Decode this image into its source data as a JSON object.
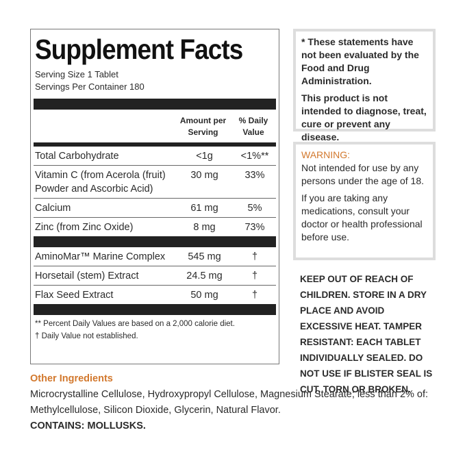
{
  "facts": {
    "title": "Supplement Facts",
    "serving_size": "Serving Size 1 Tablet",
    "servings_per_container": "Servings Per Container 180",
    "headers": [
      "Amount per Serving",
      "% Daily Value"
    ],
    "rows": [
      [
        "Total Carbohydrate",
        "<1g",
        "<1%**"
      ],
      [
        "Vitamin C (from Acerola (fruit) Powder and Ascorbic Acid)",
        "30 mg",
        "33%"
      ],
      [
        "Calcium",
        "61 mg",
        "5%"
      ],
      [
        "Zinc (from Zinc Oxide)",
        "8 mg",
        "73%"
      ]
    ],
    "blend_rows": [
      [
        "AminoMar™ Marine Complex",
        "545 mg",
        "†"
      ],
      [
        "Horsetail (stem) Extract",
        "24.5 mg",
        "†"
      ],
      [
        "Flax Seed Extract",
        "50 mg",
        "†"
      ]
    ],
    "footnotes": [
      "** Percent Daily Values are based on a 2,000 calorie diet.",
      "† Daily Value not established."
    ]
  },
  "disclaimer": [
    "* These statements have not been evaluated by the Food and Drug Administration.",
    "This product is not intended to diagnose, treat, cure or prevent any disease."
  ],
  "warning": {
    "title": "WARNING:",
    "paragraphs": [
      "Not intended for use by any persons under the age of 18.",
      "If you are taking any medications, consult your doctor or health professional before use."
    ]
  },
  "storage": "KEEP OUT OF REACH OF CHILDREN. STORE IN A DRY PLACE AND AVOID EXCESSIVE HEAT. TAMPER RESISTANT: EACH TABLET INDIVIDUALLY SEALED. DO NOT USE IF BLISTER SEAL IS CUT, TORN OR BROKEN.",
  "other_ingredients": {
    "title": "Other Ingredients",
    "text": "Microcrystalline Cellulose, Hydroxypropyl Cellulose, Magnesium Stearate; less than 2% of: Methylcellulose, Silicon Dioxide, Glycerin, Natural Flavor.",
    "contains": "CONTAINS: MOLLUSKS."
  }
}
